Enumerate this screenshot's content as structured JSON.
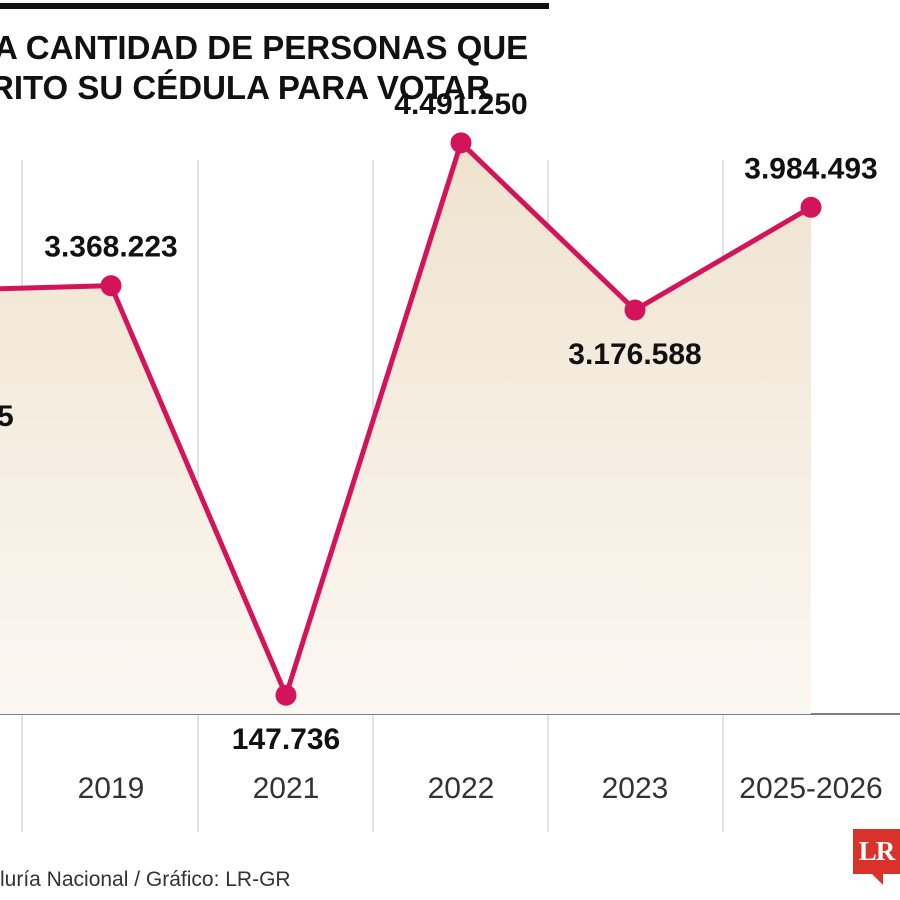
{
  "title_lines": [
    "A CANTIDAD DE PERSONAS QUE",
    "RITO SU CÉDULA PARA VOTAR"
  ],
  "source": "luría Nacional / Gráfico: LR-GR",
  "logo": "LR",
  "colors": {
    "line": "#d4145a",
    "area_top": "#efe3cf",
    "area_bottom": "#fbf7f1",
    "gridline": "#cfcfcf",
    "baseline": "#555555"
  },
  "chart_data": {
    "type": "line",
    "categories": [
      "",
      "2019",
      "2021",
      "2022",
      "2023",
      "2025-2026"
    ],
    "values": [
      3330000,
      3368223,
      147736,
      4491250,
      3176588,
      3984493
    ],
    "data_labels": [
      "",
      "3.368.223",
      "147.736",
      "4.491.250",
      "3.176.588",
      "3.984.493"
    ],
    "partial_label_left": "5",
    "ylim": [
      0,
      4600000
    ],
    "grid": "vertical",
    "area_fill": true
  }
}
